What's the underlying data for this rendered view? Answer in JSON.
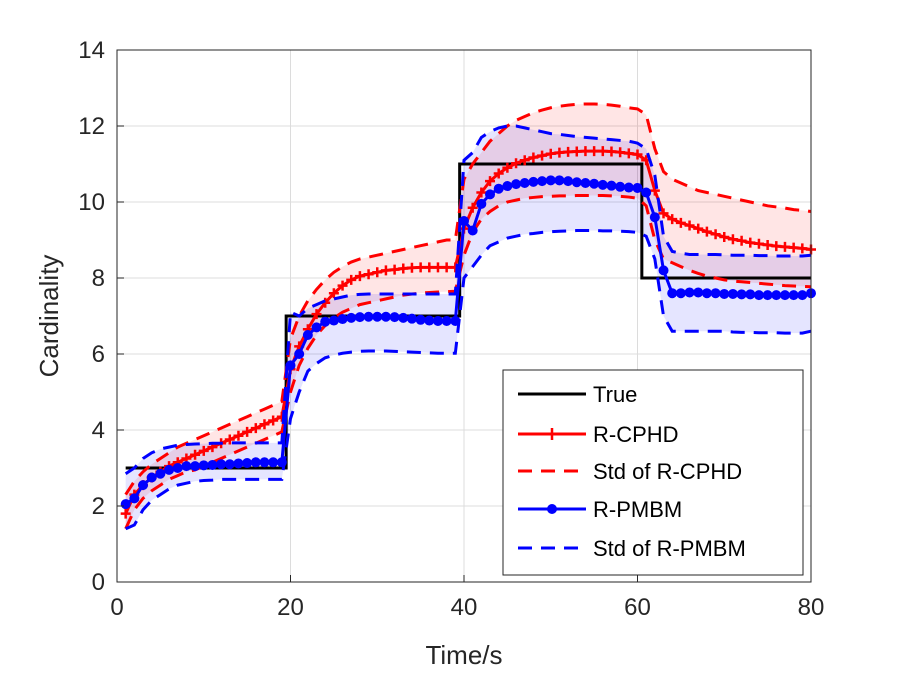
{
  "chart_data": {
    "type": "line",
    "title": "",
    "xlabel": "Time/s",
    "ylabel": "Cardinality",
    "xlim": [
      0,
      80
    ],
    "ylim": [
      0,
      14
    ],
    "xticks": [
      "0",
      "20",
      "40",
      "60",
      "80"
    ],
    "yticks": [
      "0",
      "2",
      "4",
      "6",
      "8",
      "10",
      "12",
      "14"
    ],
    "grid": true,
    "legend_position": "bottom-right",
    "x": [
      1,
      2,
      3,
      4,
      5,
      6,
      7,
      8,
      9,
      10,
      11,
      12,
      13,
      14,
      15,
      16,
      17,
      18,
      19,
      20,
      21,
      22,
      23,
      24,
      25,
      26,
      27,
      28,
      29,
      30,
      31,
      32,
      33,
      34,
      35,
      36,
      37,
      38,
      39,
      40,
      41,
      42,
      43,
      44,
      45,
      46,
      47,
      48,
      49,
      50,
      51,
      52,
      53,
      54,
      55,
      56,
      57,
      58,
      59,
      60,
      61,
      62,
      63,
      64,
      65,
      66,
      67,
      68,
      69,
      70,
      71,
      72,
      73,
      74,
      75,
      76,
      77,
      78,
      79,
      80
    ],
    "series": [
      {
        "name": "True",
        "style": "solid",
        "color": "#000000",
        "step_x": [
          1,
          19.5,
          19.5,
          39.5,
          39.5,
          60.5,
          60.5,
          80
        ],
        "step_y": [
          3,
          3,
          7,
          7,
          11,
          11,
          8,
          8
        ]
      },
      {
        "name": "R-CPHD",
        "style": "solid-plus",
        "color": "#ff0000",
        "values": [
          1.8,
          2.3,
          2.55,
          2.75,
          2.9,
          3.05,
          3.15,
          3.25,
          3.35,
          3.45,
          3.55,
          3.65,
          3.75,
          3.85,
          3.95,
          4.05,
          4.15,
          4.25,
          4.35,
          5.6,
          6.2,
          6.65,
          7.05,
          7.35,
          7.6,
          7.8,
          7.95,
          8.05,
          8.1,
          8.15,
          8.2,
          8.22,
          8.25,
          8.27,
          8.28,
          8.28,
          8.28,
          8.28,
          8.28,
          9.3,
          9.85,
          10.25,
          10.55,
          10.75,
          10.9,
          11.02,
          11.1,
          11.17,
          11.22,
          11.27,
          11.3,
          11.32,
          11.33,
          11.34,
          11.34,
          11.34,
          11.33,
          11.31,
          11.28,
          11.25,
          11.1,
          10.3,
          9.7,
          9.55,
          9.45,
          9.38,
          9.3,
          9.22,
          9.15,
          9.08,
          9.02,
          8.98,
          8.93,
          8.9,
          8.87,
          8.84,
          8.82,
          8.8,
          8.78,
          8.75
        ]
      },
      {
        "name": "Std of R-CPHD",
        "style": "dashed",
        "color": "#ff0000",
        "fill": "#ff0000",
        "upper": [
          2.3,
          2.65,
          2.9,
          3.1,
          3.25,
          3.4,
          3.55,
          3.65,
          3.75,
          3.85,
          3.95,
          4.05,
          4.15,
          4.25,
          4.35,
          4.45,
          4.55,
          4.65,
          4.75,
          6.4,
          7.0,
          7.4,
          7.7,
          7.95,
          8.15,
          8.3,
          8.42,
          8.5,
          8.55,
          8.6,
          8.65,
          8.7,
          8.75,
          8.8,
          8.85,
          8.9,
          8.95,
          9.0,
          9.0,
          10.6,
          11.0,
          11.3,
          11.6,
          11.8,
          12.0,
          12.15,
          12.25,
          12.35,
          12.42,
          12.48,
          12.52,
          12.55,
          12.57,
          12.58,
          12.58,
          12.57,
          12.55,
          12.52,
          12.48,
          12.45,
          12.3,
          11.4,
          10.8,
          10.6,
          10.5,
          10.4,
          10.3,
          10.25,
          10.2,
          10.15,
          10.1,
          10.05,
          10.0,
          9.95,
          9.9,
          9.87,
          9.84,
          9.8,
          9.78,
          9.75
        ],
        "lower": [
          1.4,
          1.9,
          2.2,
          2.4,
          2.55,
          2.7,
          2.8,
          2.9,
          2.95,
          3.05,
          3.15,
          3.25,
          3.35,
          3.45,
          3.55,
          3.65,
          3.75,
          3.85,
          3.95,
          5.0,
          5.7,
          6.15,
          6.5,
          6.75,
          6.95,
          7.1,
          7.2,
          7.3,
          7.35,
          7.4,
          7.45,
          7.5,
          7.55,
          7.58,
          7.6,
          7.62,
          7.63,
          7.64,
          7.65,
          8.6,
          9.2,
          9.55,
          9.75,
          9.9,
          10.0,
          10.05,
          10.1,
          10.12,
          10.14,
          10.15,
          10.16,
          10.16,
          10.17,
          10.17,
          10.17,
          10.17,
          10.16,
          10.15,
          10.13,
          10.1,
          9.9,
          9.0,
          8.5,
          8.4,
          8.3,
          8.2,
          8.12,
          8.05,
          8.0,
          7.95,
          7.92,
          7.9,
          7.88,
          7.86,
          7.84,
          7.82,
          7.8,
          7.79,
          7.78,
          7.77
        ]
      },
      {
        "name": "R-PMBM",
        "style": "solid-circle",
        "color": "#0000ff",
        "values": [
          2.05,
          2.2,
          2.55,
          2.75,
          2.85,
          2.95,
          3.0,
          3.05,
          3.05,
          3.07,
          3.08,
          3.1,
          3.1,
          3.12,
          3.13,
          3.15,
          3.15,
          3.15,
          3.15,
          5.7,
          6.0,
          6.5,
          6.7,
          6.85,
          6.88,
          6.92,
          6.95,
          6.97,
          6.98,
          6.98,
          6.98,
          6.97,
          6.95,
          6.93,
          6.9,
          6.88,
          6.87,
          6.87,
          6.87,
          9.5,
          9.25,
          9.95,
          10.2,
          10.35,
          10.42,
          10.47,
          10.5,
          10.53,
          10.55,
          10.57,
          10.57,
          10.55,
          10.52,
          10.5,
          10.48,
          10.45,
          10.43,
          10.4,
          10.38,
          10.37,
          10.25,
          9.6,
          8.2,
          7.6,
          7.6,
          7.62,
          7.62,
          7.6,
          7.6,
          7.58,
          7.58,
          7.57,
          7.57,
          7.55,
          7.55,
          7.55,
          7.55,
          7.55,
          7.55,
          7.6
        ]
      },
      {
        "name": "Std of R-PMBM",
        "style": "dashed",
        "color": "#0000ff",
        "fill": "#0000ff",
        "upper": [
          2.85,
          3.0,
          3.25,
          3.4,
          3.5,
          3.55,
          3.6,
          3.62,
          3.63,
          3.64,
          3.65,
          3.65,
          3.66,
          3.66,
          3.66,
          3.66,
          3.66,
          3.66,
          3.66,
          7.1,
          7.0,
          7.2,
          7.3,
          7.4,
          7.45,
          7.5,
          7.55,
          7.57,
          7.58,
          7.58,
          7.58,
          7.58,
          7.58,
          7.58,
          7.58,
          7.58,
          7.58,
          7.58,
          7.58,
          11.1,
          11.3,
          11.7,
          11.85,
          11.95,
          12.0,
          12.0,
          11.95,
          11.9,
          11.85,
          11.8,
          11.78,
          11.75,
          11.72,
          11.7,
          11.68,
          11.66,
          11.64,
          11.62,
          11.6,
          11.55,
          11.4,
          10.7,
          9.1,
          8.7,
          8.65,
          8.62,
          8.62,
          8.62,
          8.62,
          8.61,
          8.6,
          8.6,
          8.6,
          8.59,
          8.59,
          8.58,
          8.58,
          8.58,
          8.58,
          8.6
        ],
        "lower": [
          1.4,
          1.5,
          1.9,
          2.15,
          2.3,
          2.45,
          2.55,
          2.6,
          2.65,
          2.67,
          2.68,
          2.7,
          2.7,
          2.7,
          2.7,
          2.7,
          2.7,
          2.7,
          2.7,
          4.3,
          5.0,
          5.55,
          5.75,
          5.9,
          5.97,
          6.02,
          6.05,
          6.07,
          6.08,
          6.08,
          6.08,
          6.07,
          6.06,
          6.05,
          6.04,
          6.03,
          6.02,
          6.02,
          6.02,
          8.0,
          8.3,
          8.6,
          8.85,
          8.95,
          9.05,
          9.1,
          9.15,
          9.17,
          9.2,
          9.22,
          9.23,
          9.24,
          9.25,
          9.25,
          9.25,
          9.24,
          9.24,
          9.23,
          9.22,
          9.2,
          9.1,
          8.5,
          7.0,
          6.6,
          6.6,
          6.6,
          6.6,
          6.6,
          6.6,
          6.6,
          6.58,
          6.57,
          6.57,
          6.56,
          6.56,
          6.56,
          6.55,
          6.55,
          6.55,
          6.6
        ]
      }
    ]
  }
}
